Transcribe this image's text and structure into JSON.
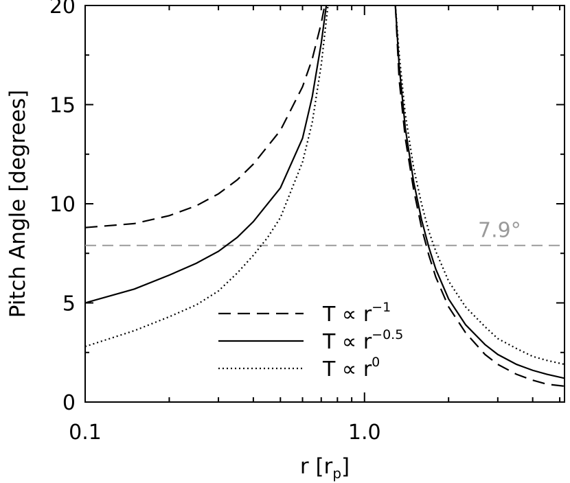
{
  "chart_data": {
    "type": "line",
    "xlabel": {
      "base": "r  [r",
      "sub": "p",
      "close": "]"
    },
    "ylabel": "Pitch Angle [degrees]",
    "xscale": "log",
    "xlim": [
      0.1,
      5.2
    ],
    "ylim": [
      0,
      20
    ],
    "xticks": [
      {
        "value": 0.1,
        "label": "0.1"
      },
      {
        "value": 1.0,
        "label": "1.0"
      }
    ],
    "yticks": [
      {
        "value": 0,
        "label": "0"
      },
      {
        "value": 5,
        "label": "5"
      },
      {
        "value": 10,
        "label": "10"
      },
      {
        "value": 15,
        "label": "15"
      },
      {
        "value": 20,
        "label": "20"
      }
    ],
    "reference_line": {
      "y": 7.9,
      "label": "7.9°",
      "color": "#9a9a9a",
      "style": "dashed"
    },
    "series": [
      {
        "name": "T ∝ r^-1",
        "legend": {
          "base": "T  ∝  r",
          "sup": "−1"
        },
        "style": "dashed",
        "color": "#000000",
        "left_branch": {
          "x": [
            0.1,
            0.15,
            0.2,
            0.25,
            0.3,
            0.35,
            0.4,
            0.5,
            0.6,
            0.65,
            0.7,
            0.72
          ],
          "y": [
            8.8,
            9.0,
            9.4,
            9.9,
            10.5,
            11.2,
            12.0,
            13.7,
            15.9,
            17.3,
            19.1,
            20.0
          ]
        },
        "right_branch": {
          "x": [
            1.29,
            1.33,
            1.4,
            1.5,
            1.6,
            1.7,
            1.8,
            2.0,
            2.3,
            2.7,
            3.0,
            3.5,
            4.0,
            4.5,
            5.2
          ],
          "y": [
            20.0,
            16.3,
            13.3,
            10.7,
            8.8,
            7.4,
            6.3,
            4.8,
            3.5,
            2.4,
            1.9,
            1.4,
            1.1,
            0.9,
            0.8
          ]
        }
      },
      {
        "name": "T ∝ r^-0.5",
        "legend": {
          "base": "T  ∝  r",
          "sup": "−0.5"
        },
        "style": "solid",
        "color": "#000000",
        "left_branch": {
          "x": [
            0.1,
            0.15,
            0.2,
            0.25,
            0.3,
            0.35,
            0.4,
            0.5,
            0.6,
            0.65,
            0.7,
            0.73
          ],
          "y": [
            5.0,
            5.7,
            6.4,
            7.0,
            7.6,
            8.3,
            9.1,
            10.8,
            13.3,
            15.4,
            18.1,
            20.0
          ]
        },
        "right_branch": {
          "x": [
            1.29,
            1.33,
            1.4,
            1.5,
            1.6,
            1.7,
            1.8,
            2.0,
            2.3,
            2.7,
            3.0,
            3.5,
            4.0,
            4.5,
            5.2
          ],
          "y": [
            20.0,
            17.0,
            13.8,
            11.1,
            9.2,
            7.8,
            6.7,
            5.2,
            3.9,
            2.9,
            2.4,
            1.9,
            1.6,
            1.4,
            1.2
          ]
        }
      },
      {
        "name": "T ∝ r^0",
        "legend": {
          "base": "T  ∝  r",
          "sup": "0"
        },
        "style": "dotted",
        "color": "#000000",
        "left_branch": {
          "x": [
            0.1,
            0.15,
            0.2,
            0.25,
            0.3,
            0.35,
            0.4,
            0.45,
            0.5,
            0.6,
            0.65,
            0.7,
            0.74
          ],
          "y": [
            2.8,
            3.6,
            4.3,
            4.9,
            5.6,
            6.5,
            7.4,
            8.3,
            9.3,
            12.1,
            14.1,
            17.0,
            20.0
          ]
        },
        "right_branch": {
          "x": [
            1.29,
            1.33,
            1.4,
            1.5,
            1.6,
            1.7,
            1.8,
            2.0,
            2.3,
            2.7,
            3.0,
            3.5,
            4.0,
            4.5,
            5.2
          ],
          "y": [
            20.0,
            17.6,
            14.5,
            11.8,
            10.0,
            8.6,
            7.6,
            6.1,
            4.8,
            3.8,
            3.2,
            2.7,
            2.3,
            2.1,
            1.9
          ]
        }
      }
    ],
    "legend_position": "bottom-center"
  }
}
